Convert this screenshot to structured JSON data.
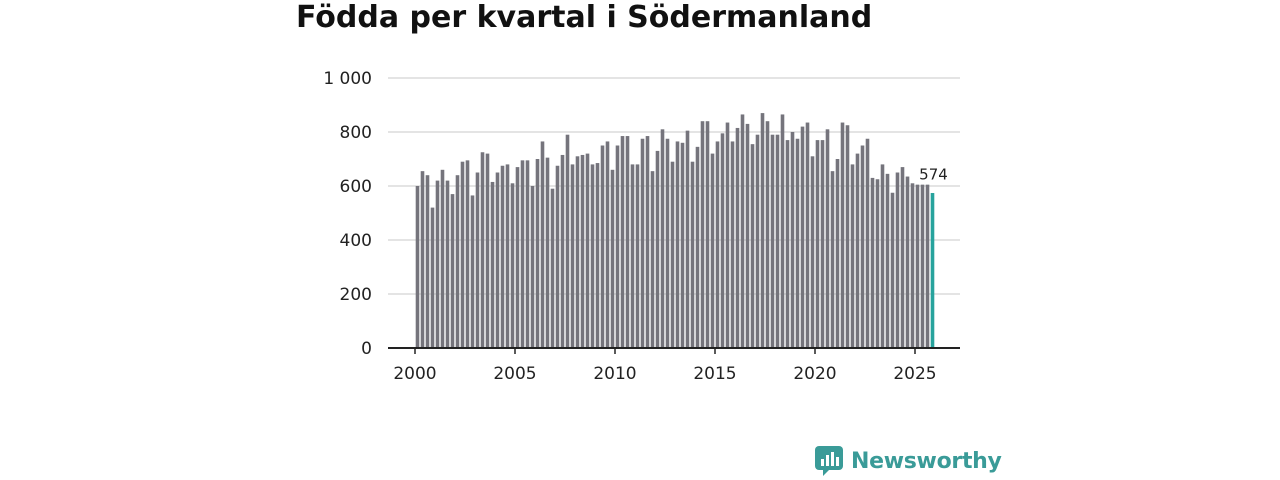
{
  "chart_data": {
    "type": "bar",
    "title": "Födda per kvartal i Södermanland",
    "xlabel": "",
    "ylabel": "",
    "ylim": [
      0,
      1000
    ],
    "yticks": [
      {
        "value": 0,
        "label": "0"
      },
      {
        "value": 200,
        "label": "200"
      },
      {
        "value": 400,
        "label": "400"
      },
      {
        "value": 600,
        "label": "600"
      },
      {
        "value": 800,
        "label": "800"
      },
      {
        "value": 1000,
        "label": "1 000"
      }
    ],
    "xticks": [
      {
        "value": 2000,
        "label": "2000"
      },
      {
        "value": 2005,
        "label": "2005"
      },
      {
        "value": 2010,
        "label": "2010"
      },
      {
        "value": 2015,
        "label": "2015"
      },
      {
        "value": 2020,
        "label": "2020"
      },
      {
        "value": 2025,
        "label": "2025"
      }
    ],
    "start_year": 2000,
    "values": [
      600,
      655,
      640,
      520,
      620,
      660,
      620,
      570,
      640,
      690,
      695,
      565,
      650,
      725,
      720,
      615,
      650,
      675,
      680,
      610,
      670,
      695,
      695,
      600,
      700,
      765,
      705,
      590,
      675,
      715,
      790,
      680,
      710,
      715,
      720,
      680,
      685,
      750,
      765,
      660,
      750,
      785,
      785,
      680,
      680,
      775,
      785,
      655,
      730,
      810,
      775,
      690,
      765,
      760,
      805,
      690,
      745,
      840,
      840,
      720,
      765,
      795,
      835,
      765,
      815,
      865,
      830,
      755,
      790,
      870,
      840,
      790,
      790,
      865,
      770,
      800,
      775,
      820,
      835,
      710,
      770,
      770,
      810,
      655,
      700,
      835,
      825,
      680,
      720,
      750,
      775,
      630,
      625,
      680,
      645,
      575,
      650,
      670,
      635,
      610,
      605,
      605,
      605,
      574
    ],
    "highlight_label": "574",
    "colors": {
      "bar": "#75747c",
      "highlight": "#27a39d",
      "grid": "#dcdcdc",
      "axis": "#222222"
    }
  },
  "brand": {
    "name": "Newsworthy",
    "icon": "bar-chart-badge-icon",
    "color": "#3a9b98"
  }
}
